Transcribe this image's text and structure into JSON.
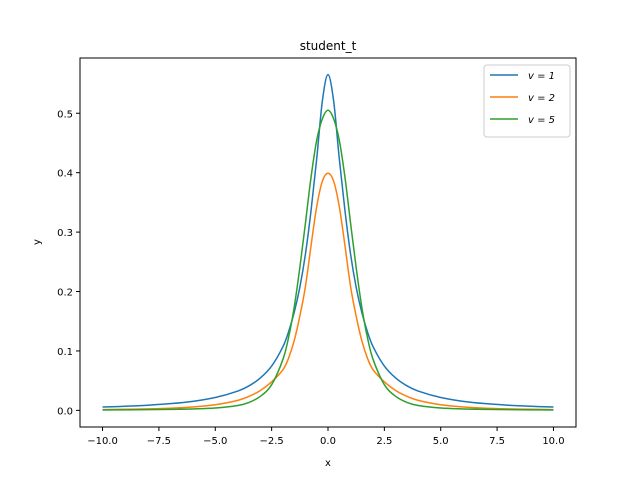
{
  "chart_data": {
    "type": "line",
    "title": "student_t",
    "xlabel": "x",
    "ylabel": "y",
    "xlim": [
      -11.0,
      11.0
    ],
    "ylim": [
      -0.028,
      0.593
    ],
    "xticks": [
      -10.0,
      -7.5,
      -5.0,
      -2.5,
      0.0,
      2.5,
      5.0,
      7.5,
      10.0
    ],
    "xtick_labels": [
      "−10.0",
      "−7.5",
      "−5.0",
      "−2.5",
      "0.0",
      "2.5",
      "5.0",
      "7.5",
      "10.0"
    ],
    "yticks": [
      0.0,
      0.1,
      0.2,
      0.3,
      0.4,
      0.5
    ],
    "ytick_labels": [
      "0.0",
      "0.1",
      "0.2",
      "0.3",
      "0.4",
      "0.5"
    ],
    "grid": false,
    "legend_position": "top-right",
    "x": [
      -10,
      -9,
      -8,
      -7,
      -6,
      -5,
      -4,
      -3.5,
      -3,
      -2.5,
      -2,
      -1.75,
      -1.5,
      -1.25,
      -1,
      -0.75,
      -0.5,
      -0.25,
      0,
      0.25,
      0.5,
      0.75,
      1,
      1.25,
      1.5,
      1.75,
      2,
      2.5,
      3,
      3.5,
      4,
      5,
      6,
      7,
      8,
      9,
      10
    ],
    "series": [
      {
        "name": "v = 1",
        "color": "#1f77b4",
        "values": [
          0.0056,
          0.0069,
          0.0087,
          0.0113,
          0.0152,
          0.0216,
          0.0325,
          0.0413,
          0.0546,
          0.0746,
          0.1072,
          0.1322,
          0.1647,
          0.2069,
          0.2631,
          0.3369,
          0.4237,
          0.5206,
          0.565,
          0.5206,
          0.4237,
          0.3369,
          0.2631,
          0.2069,
          0.1647,
          0.1322,
          0.1072,
          0.0746,
          0.0546,
          0.0413,
          0.0325,
          0.0216,
          0.0152,
          0.0113,
          0.0087,
          0.0069,
          0.0056
        ]
      },
      {
        "name": "v = 2",
        "color": "#ff7f0e",
        "values": [
          0.0013,
          0.0018,
          0.0025,
          0.0036,
          0.0056,
          0.0094,
          0.0168,
          0.0236,
          0.0334,
          0.048,
          0.0683,
          0.0878,
          0.1172,
          0.1585,
          0.2087,
          0.2778,
          0.3432,
          0.3856,
          0.399,
          0.3856,
          0.3432,
          0.2778,
          0.2087,
          0.1585,
          0.1172,
          0.0878,
          0.0683,
          0.048,
          0.0334,
          0.0236,
          0.0168,
          0.0094,
          0.0056,
          0.0036,
          0.0025,
          0.0018,
          0.0013
        ]
      },
      {
        "name": "v = 5",
        "color": "#2ca02c",
        "values": [
          0.0007,
          0.0009,
          0.0012,
          0.0016,
          0.0024,
          0.0039,
          0.0082,
          0.0134,
          0.0236,
          0.0432,
          0.0857,
          0.1225,
          0.1734,
          0.2401,
          0.3154,
          0.3929,
          0.4548,
          0.4905,
          0.505,
          0.4905,
          0.4548,
          0.3929,
          0.3154,
          0.2401,
          0.1734,
          0.1225,
          0.0857,
          0.0432,
          0.0236,
          0.0134,
          0.0082,
          0.0039,
          0.0024,
          0.0016,
          0.0012,
          0.0009,
          0.0007
        ]
      }
    ]
  }
}
